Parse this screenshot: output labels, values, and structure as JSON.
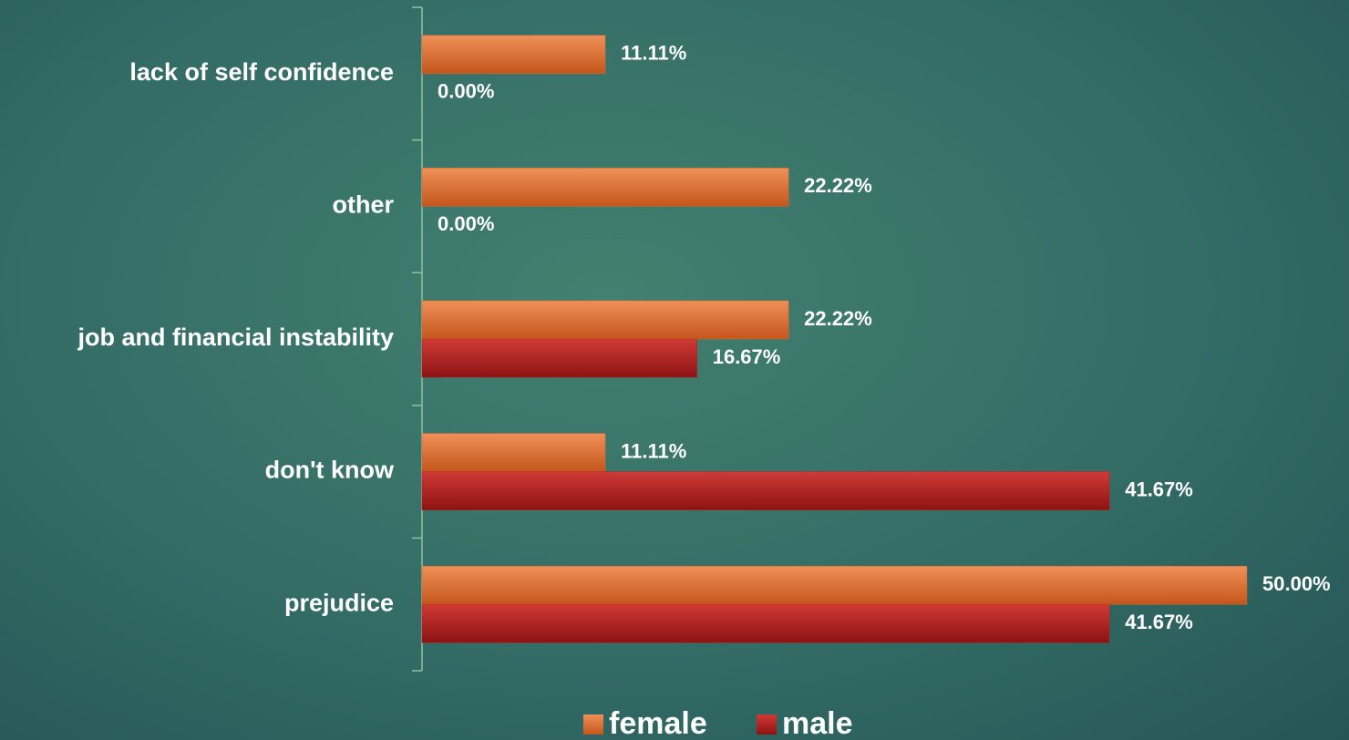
{
  "chart_data": {
    "type": "bar",
    "orientation": "horizontal",
    "categories": [
      "lack of self confidence",
      "other",
      "job and financial instability",
      "don't know",
      "prejudice"
    ],
    "series": [
      {
        "name": "female",
        "color": "#d9692f",
        "values": [
          11.11,
          22.22,
          22.22,
          11.11,
          50.0
        ],
        "value_labels": [
          "11.11%",
          "22.22%",
          "22.22%",
          "11.11%",
          "50.00%"
        ]
      },
      {
        "name": "male",
        "color": "#b62424",
        "values": [
          0,
          0,
          16.67,
          41.67,
          41.67
        ],
        "value_labels": [
          "0.00%",
          "0.00%",
          "16.67%",
          "41.67%",
          "41.67%"
        ]
      }
    ],
    "legend": "bottom"
  }
}
